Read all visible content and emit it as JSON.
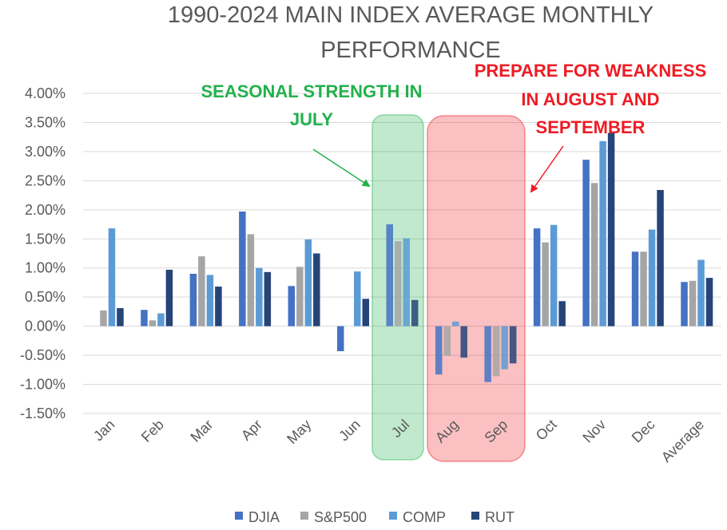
{
  "chart_data": {
    "type": "bar",
    "title_lines": [
      "1990-2024 MAIN INDEX AVERAGE MONTHLY",
      "PERFORMANCE"
    ],
    "categories": [
      "Jan",
      "Feb",
      "Mar",
      "Apr",
      "May",
      "Jun",
      "Jul",
      "Aug",
      "Sep",
      "Oct",
      "Nov",
      "Dec",
      "Average"
    ],
    "series": [
      {
        "name": "DJIA",
        "color": "#4472c4",
        "values": [
          0.0,
          0.28,
          0.9,
          1.97,
          0.69,
          -0.43,
          1.75,
          -0.83,
          -0.96,
          1.68,
          2.86,
          1.28,
          0.76
        ]
      },
      {
        "name": "S&P500",
        "color": "#a5a5a5",
        "values": [
          0.27,
          0.1,
          1.2,
          1.58,
          1.02,
          0.0,
          1.46,
          -0.51,
          -0.86,
          1.44,
          2.46,
          1.28,
          0.78
        ]
      },
      {
        "name": "COMP",
        "color": "#5b9bd5",
        "values": [
          1.68,
          0.22,
          0.88,
          1.0,
          1.49,
          0.94,
          1.51,
          0.08,
          -0.74,
          1.74,
          3.18,
          1.66,
          1.14
        ]
      },
      {
        "name": "RUT",
        "color": "#264478",
        "values": [
          0.31,
          0.97,
          0.68,
          0.93,
          1.25,
          0.47,
          0.45,
          -0.54,
          -0.64,
          0.43,
          3.32,
          2.34,
          0.83
        ]
      }
    ],
    "ylim": [
      -1.5,
      4.0
    ],
    "yticks": [
      4.0,
      3.5,
      3.0,
      2.5,
      2.0,
      1.5,
      1.0,
      0.5,
      0.0,
      -0.5,
      -1.0,
      -1.5
    ],
    "ytick_labels": [
      "4.00%",
      "3.50%",
      "3.00%",
      "2.50%",
      "2.00%",
      "1.50%",
      "1.00%",
      "0.50%",
      "0.00%",
      "-0.50%",
      "-1.00%",
      "-1.50%"
    ],
    "legend_position": "bottom",
    "annotations": {
      "green": {
        "lines": [
          "SEASONAL STRENGTH IN",
          "JULY"
        ],
        "color": "#22b14c",
        "highlight_categories": [
          "Jul"
        ]
      },
      "red": {
        "lines": [
          "PREPARE FOR WEAKNESS",
          "IN AUGUST AND",
          "SEPTEMBER"
        ],
        "color": "#ee1c24",
        "highlight_categories": [
          "Aug",
          "Sep"
        ]
      }
    }
  }
}
